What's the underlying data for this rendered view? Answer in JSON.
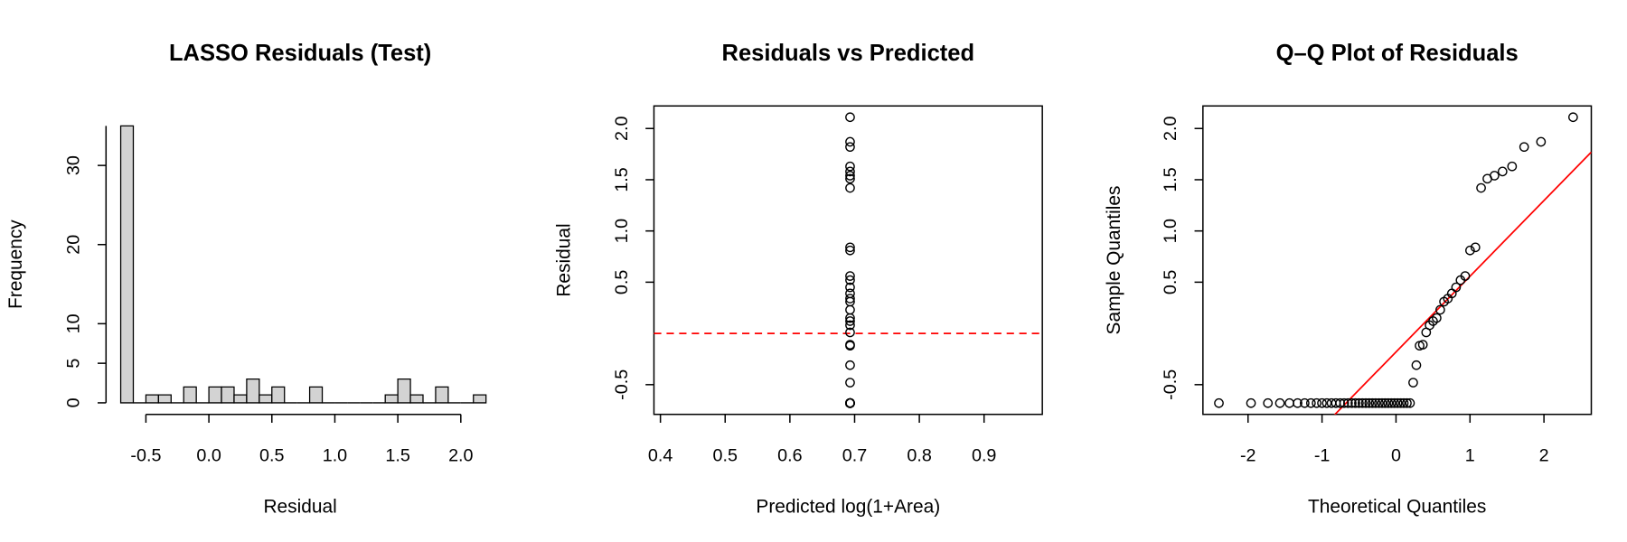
{
  "chart_data": [
    {
      "type": "histogram",
      "title": "LASSO Residuals (Test)",
      "xlabel": "Residual",
      "ylabel": "Frequency",
      "bins": [
        -0.7,
        -0.6,
        -0.5,
        -0.4,
        -0.3,
        -0.2,
        -0.1,
        0.0,
        0.1,
        0.2,
        0.3,
        0.4,
        0.5,
        0.6,
        0.7,
        0.8,
        0.9,
        1.0,
        1.1,
        1.2,
        1.3,
        1.4,
        1.5,
        1.6,
        1.7,
        1.8,
        1.9,
        2.0,
        2.1,
        2.2
      ],
      "values": [
        35,
        0,
        1,
        1,
        0,
        2,
        0,
        2,
        2,
        1,
        3,
        1,
        2,
        0,
        0,
        2,
        0,
        0,
        0,
        0,
        0,
        1,
        3,
        1,
        0,
        2,
        0,
        0,
        1
      ],
      "color": "#d3d3d3",
      "xlim": [
        -0.7,
        2.2
      ],
      "xticks": [
        -0.5,
        {
          "value": 0,
          "label": "0.0"
        },
        0.5,
        {
          "value": 1,
          "label": "1.0"
        },
        1.5,
        {
          "value": 2,
          "label": "2.0"
        }
      ],
      "ylim": [
        0,
        35
      ],
      "yticks": [
        0,
        5,
        10,
        20,
        30
      ]
    },
    {
      "type": "scatter",
      "title": "Residuals vs Predicted",
      "xlabel": "Predicted log(1+Area)",
      "ylabel": "Residual",
      "x": [
        0.693,
        0.693,
        0.693,
        0.693,
        0.693,
        0.693,
        0.693,
        0.693,
        0.693,
        0.693,
        0.693,
        0.693,
        0.693,
        0.693,
        0.693,
        0.693,
        0.693,
        0.693,
        0.693,
        0.693,
        0.693,
        0.693,
        0.693,
        0.693,
        0.693,
        0.693,
        0.693,
        0.693,
        0.693,
        0.693,
        0.693,
        0.693,
        0.693,
        0.693,
        0.693,
        0.693,
        0.693,
        0.693,
        0.693,
        0.693,
        0.693,
        0.693,
        0.693,
        0.693,
        0.693,
        0.693,
        0.693,
        0.693,
        0.693,
        0.693,
        0.693,
        0.693,
        0.693,
        0.693,
        0.693,
        0.693,
        0.693,
        0.693,
        0.693,
        0.693
      ],
      "values": [
        -0.68,
        -0.68,
        -0.68,
        -0.68,
        -0.68,
        -0.68,
        -0.68,
        -0.68,
        -0.68,
        -0.68,
        -0.68,
        -0.68,
        -0.68,
        -0.68,
        -0.68,
        -0.68,
        -0.68,
        -0.68,
        -0.68,
        -0.68,
        -0.68,
        -0.68,
        -0.68,
        -0.68,
        -0.68,
        -0.68,
        -0.68,
        -0.68,
        -0.68,
        -0.68,
        -0.68,
        -0.68,
        -0.68,
        -0.68,
        -0.68,
        -0.48,
        -0.31,
        -0.12,
        -0.11,
        0.01,
        0.08,
        0.12,
        0.15,
        0.23,
        0.31,
        0.34,
        0.39,
        0.45,
        0.52,
        0.56,
        0.81,
        0.84,
        1.42,
        1.51,
        1.54,
        1.58,
        1.63,
        1.82,
        1.87,
        2.11
      ],
      "color": "#000000",
      "hline": 0,
      "hline_color": "#ff0000",
      "xlim": [
        0.39,
        0.99
      ],
      "xticks": [
        0.4,
        0.5,
        0.6,
        0.7,
        0.8,
        0.9
      ],
      "ylim": [
        -0.79,
        2.22
      ],
      "yticks": [
        -0.5,
        0.5,
        {
          "value": 1,
          "label": "1.0"
        },
        1.5,
        {
          "value": 2,
          "label": "2.0"
        }
      ]
    },
    {
      "type": "scatter",
      "title": "Q–Q Plot of Residuals",
      "xlabel": "Theoretical Quantiles",
      "ylabel": "Sample Quantiles",
      "x": [
        -2.394,
        -1.96,
        -1.732,
        -1.569,
        -1.44,
        -1.331,
        -1.235,
        -1.15,
        -1.073,
        -1.001,
        -0.935,
        -0.872,
        -0.812,
        -0.755,
        -0.701,
        -0.649,
        -0.598,
        -0.549,
        -0.501,
        -0.454,
        -0.408,
        -0.363,
        -0.319,
        -0.275,
        -0.232,
        -0.189,
        -0.147,
        -0.105,
        -0.063,
        -0.021,
        0.021,
        0.063,
        0.105,
        0.147,
        0.189,
        0.232,
        0.275,
        0.319,
        0.363,
        0.408,
        0.454,
        0.501,
        0.549,
        0.598,
        0.649,
        0.701,
        0.755,
        0.812,
        0.872,
        0.935,
        1.001,
        1.073,
        1.15,
        1.235,
        1.331,
        1.44,
        1.569,
        1.732,
        1.96,
        2.394
      ],
      "values": [
        -0.68,
        -0.68,
        -0.68,
        -0.68,
        -0.68,
        -0.68,
        -0.68,
        -0.68,
        -0.68,
        -0.68,
        -0.68,
        -0.68,
        -0.68,
        -0.68,
        -0.68,
        -0.68,
        -0.68,
        -0.68,
        -0.68,
        -0.68,
        -0.68,
        -0.68,
        -0.68,
        -0.68,
        -0.68,
        -0.68,
        -0.68,
        -0.68,
        -0.68,
        -0.68,
        -0.68,
        -0.68,
        -0.68,
        -0.68,
        -0.68,
        -0.48,
        -0.31,
        -0.12,
        -0.11,
        0.01,
        0.08,
        0.12,
        0.15,
        0.23,
        0.31,
        0.34,
        0.39,
        0.45,
        0.52,
        0.56,
        0.81,
        0.84,
        1.42,
        1.51,
        1.54,
        1.58,
        1.63,
        1.82,
        1.87,
        2.11
      ],
      "color": "#000000",
      "ref_line": {
        "intercept": -0.181,
        "slope": 0.739,
        "color": "#ff0000"
      },
      "xlim": [
        -2.61,
        2.64
      ],
      "xticks": [
        -2,
        -1,
        0,
        1,
        2
      ],
      "ylim": [
        -0.79,
        2.22
      ],
      "yticks": [
        -0.5,
        0.5,
        {
          "value": 1,
          "label": "1.0"
        },
        1.5,
        {
          "value": 2,
          "label": "2.0"
        }
      ]
    }
  ]
}
